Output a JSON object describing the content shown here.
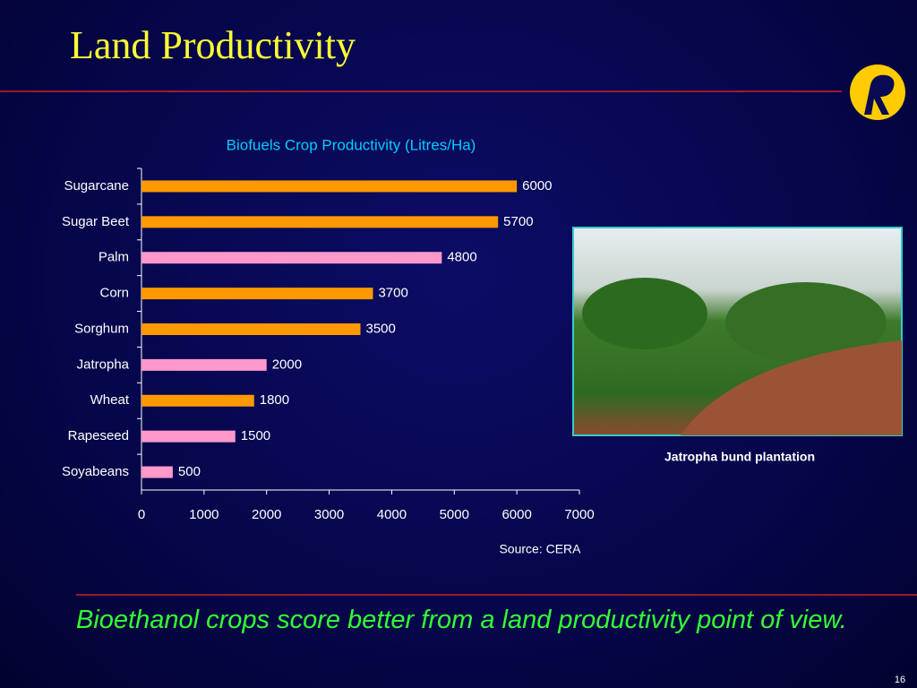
{
  "slide": {
    "title": "Land Productivity",
    "photo_caption": "Jatropha bund plantation",
    "source": "Source: CERA",
    "takeaway": "Bioethanol crops score better from a land productivity point of view.",
    "page_number": "16"
  },
  "chart_data": {
    "type": "hbar",
    "title": "Biofuels Crop Productivity (Litres/Ha)",
    "categories": [
      "Sugarcane",
      "Sugar Beet",
      "Palm",
      "Corn",
      "Sorghum",
      "Jatropha",
      "Wheat",
      "Rapeseed",
      "Soyabeans"
    ],
    "values": [
      6000,
      5700,
      4800,
      3700,
      3500,
      2000,
      1800,
      1500,
      500
    ],
    "colors": [
      "#ff9900",
      "#ff9900",
      "#ff99cc",
      "#ff9900",
      "#ff9900",
      "#ff99cc",
      "#ff9900",
      "#ff99cc",
      "#ff99cc"
    ],
    "xlim": [
      0,
      7000
    ],
    "xticks": [
      0,
      1000,
      2000,
      3000,
      4000,
      5000,
      6000,
      7000
    ],
    "grid": false
  }
}
